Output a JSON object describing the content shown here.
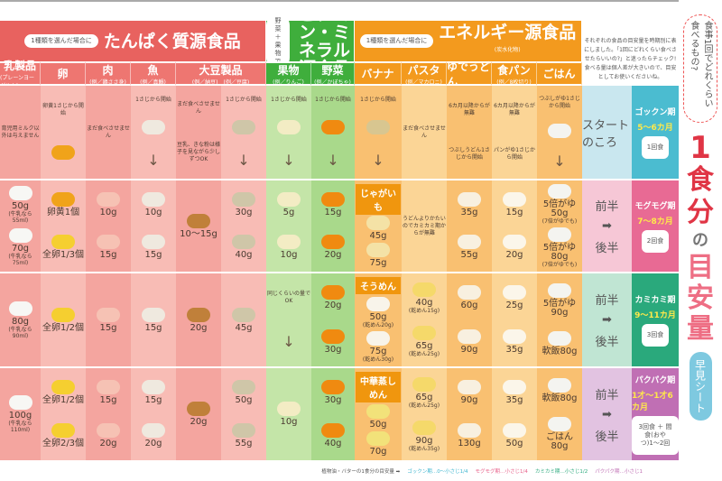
{
  "colors": {
    "protein": "#e8625f",
    "protein_sub": "#ee7671",
    "protein_a": "#f4a59f",
    "protein_b": "#f8bcb5",
    "vitamin": "#3fae3c",
    "vitamin_a": "#a9d98b",
    "vitamin_b": "#c4e5a8",
    "energy": "#f39a1e",
    "energy_a": "#f9c071",
    "energy_b": "#fbd596"
  },
  "categories": [
    {
      "bubble": "1種類を選んだ場合に",
      "title": "たんぱく質源食品",
      "sub": ""
    },
    {
      "bubble": "野菜＋果物で",
      "title": "ビタミン・ミネラル源食品",
      "sub": ""
    },
    {
      "bubble": "1種類を選んだ場合に",
      "title": "エネルギー源食品",
      "sub": "(炭水化物)"
    }
  ],
  "columns": [
    {
      "name": "乳製品",
      "ex": "(プレーンヨーグルト)"
    },
    {
      "name": "卵",
      "ex": ""
    },
    {
      "name": "肉",
      "ex": "(例／鶏ささ身)"
    },
    {
      "name": "魚",
      "ex": "(例／真鯛)"
    },
    {
      "name": "大豆製品",
      "ex": "(例／納豆)　(例／豆腐)"
    },
    {
      "name": "果物",
      "ex": "(例／りんご)"
    },
    {
      "name": "野菜",
      "ex": "(例／かぼちゃ)"
    },
    {
      "name": "バナナ",
      "ex": ""
    },
    {
      "name": "パスタ",
      "ex": "(例／マカロニ)"
    },
    {
      "name": "ゆでうどん",
      "ex": ""
    },
    {
      "name": "食パン",
      "ex": "(例／8枚切り)"
    },
    {
      "name": "ごはん",
      "ex": ""
    }
  ],
  "intro": "それぞれの食品の目安量を時期別に表にしました。「1回にどれくらい食べさせたらいいの?」と迷ったらチェック! 食べる量は個人差が大きいので、目安としてお使いくださいね。",
  "stages": [
    {
      "label": [
        "スタートのころ"
      ],
      "name": "ゴックン期",
      "months": "5〜6カ月",
      "meal": "1回食"
    },
    {
      "label": [
        "前半",
        "➡",
        "後半"
      ],
      "name": "モグモグ期",
      "months": "7〜8カ月",
      "meal": "2回食"
    },
    {
      "label": [
        "前半",
        "➡",
        "後半"
      ],
      "name": "カミカミ期",
      "months": "9〜11カ月",
      "meal": "3回食"
    },
    {
      "label": [
        "前半",
        "➡",
        "後半"
      ],
      "name": "パクパク期",
      "months": "1才〜1才6カ月",
      "meal": "3回食 ＋ 間食(おやつ)1〜2回"
    }
  ],
  "rows": [
    [
      [
        {
          "t": "育児用ミルク以外は与えません"
        }
      ],
      [
        {
          "t": "卵黄1さじから開始"
        },
        {
          "food": "yolk"
        }
      ],
      [
        {
          "t": "まだ食べさせません"
        }
      ],
      [
        {
          "t": "1さじから開始"
        },
        {
          "food": "fish"
        },
        {
          "arrow": "↓"
        }
      ],
      [
        {
          "t": "まだ食べさせません"
        },
        {
          "t": "豆乳、きな粉は様子を見ながら少しずつOK"
        }
      ],
      [
        {
          "t": "1さじから開始"
        },
        {
          "food": "tofu"
        },
        {
          "arrow": "↓"
        }
      ],
      [
        {
          "t": "1さじから開始"
        },
        {
          "food": "apple"
        },
        {
          "arrow": "↓"
        }
      ],
      [
        {
          "t": "1さじから開始"
        },
        {
          "food": "pumpkin"
        },
        {
          "arrow": "↓"
        }
      ],
      [
        {
          "t": "1さじから開始"
        },
        {
          "food": "banana"
        },
        {
          "arrow": "↓"
        }
      ],
      [
        {
          "t": "まだ食べさせません"
        }
      ],
      [
        {
          "t": "6カ月以降からが無難"
        },
        {
          "t": "つぶしうどん1さじから開始"
        }
      ],
      [
        {
          "t": "6カ月以降からが無難"
        },
        {
          "t": "パンがゆ1さじから開始"
        }
      ],
      [
        {
          "t": "つぶしがゆ1さじから開始"
        },
        {
          "food": "rice"
        },
        {
          "arrow": "↓"
        }
      ]
    ],
    [
      [
        {
          "food": "milk",
          "a": "50g",
          "n": "(牛乳なら55ml)"
        },
        {
          "food": "milk",
          "a": "70g",
          "n": "(牛乳なら75ml)"
        }
      ],
      [
        {
          "food": "yolk",
          "a": "卵黄1個"
        },
        {
          "food": "egg",
          "a": "全卵1/3個"
        }
      ],
      [
        {
          "food": "meat",
          "a": "10g"
        },
        {
          "food": "meat",
          "a": "15g"
        }
      ],
      [
        {
          "food": "fish",
          "a": "10g"
        },
        {
          "food": "fish",
          "a": "15g"
        }
      ],
      [
        {
          "food": "natto",
          "a": "10〜15g"
        }
      ],
      [
        {
          "food": "tofu",
          "a": "30g"
        },
        {
          "food": "tofu",
          "a": "40g"
        }
      ],
      [
        {
          "food": "apple",
          "a": "5g"
        },
        {
          "food": "apple",
          "a": "10g"
        }
      ],
      [
        {
          "food": "pumpkin",
          "a": "15g"
        },
        {
          "food": "pumpkin",
          "a": "20g"
        }
      ],
      [
        {
          "tag": "じゃがいも"
        },
        {
          "food": "potato",
          "a": "45g"
        },
        {
          "food": "potato",
          "a": "75g"
        }
      ],
      [
        {
          "t": "うどんよりかたいのでカミカミ期からが無難"
        }
      ],
      [
        {
          "food": "udon",
          "a": "35g"
        },
        {
          "food": "udon",
          "a": "55g"
        }
      ],
      [
        {
          "food": "bread",
          "a": "15g"
        },
        {
          "food": "bread",
          "a": "20g"
        }
      ],
      [
        {
          "food": "rice",
          "a": "5倍がゆ50g",
          "n": "(7倍がゆでも)"
        },
        {
          "food": "rice",
          "a": "5倍がゆ80g",
          "n": "(7倍がゆでも)"
        }
      ]
    ],
    [
      [
        {
          "food": "milk",
          "a": "80g",
          "n": "(牛乳なら90ml)"
        }
      ],
      [
        {
          "food": "egg",
          "a": "全卵1/2個"
        }
      ],
      [
        {
          "food": "meat",
          "a": "15g"
        }
      ],
      [
        {
          "food": "fish",
          "a": "15g"
        }
      ],
      [
        {
          "food": "natto",
          "a": "20g"
        }
      ],
      [
        {
          "food": "tofu",
          "a": "45g"
        }
      ],
      [
        {
          "t": "同じくらいの量でOK"
        },
        {
          "arrow": "↓"
        }
      ],
      [
        {
          "food": "pumpkin",
          "a": "20g"
        },
        {
          "food": "pumpkin",
          "a": "30g"
        }
      ],
      [
        {
          "tag": "そうめん"
        },
        {
          "food": "somen",
          "a": "50g",
          "n": "(乾めん20g)"
        },
        {
          "food": "somen",
          "a": "75g",
          "n": "(乾めん30g)"
        }
      ],
      [
        {
          "food": "pasta",
          "a": "40g",
          "n": "(乾めん15g)"
        },
        {
          "food": "pasta",
          "a": "65g",
          "n": "(乾めん25g)"
        }
      ],
      [
        {
          "food": "udon",
          "a": "60g"
        },
        {
          "food": "udon",
          "a": "90g"
        }
      ],
      [
        {
          "food": "bread",
          "a": "25g"
        },
        {
          "food": "bread",
          "a": "35g"
        }
      ],
      [
        {
          "food": "rice",
          "a": "5倍がゆ90g"
        },
        {
          "food": "rice",
          "a": "軟飯80g"
        }
      ]
    ],
    [
      [
        {
          "food": "milk",
          "a": "100g",
          "n": "(牛乳なら110ml)"
        }
      ],
      [
        {
          "food": "egg",
          "a": "全卵1/2個"
        },
        {
          "food": "egg",
          "a": "全卵2/3個"
        }
      ],
      [
        {
          "food": "meat",
          "a": "15g"
        },
        {
          "food": "meat",
          "a": "20g"
        }
      ],
      [
        {
          "food": "fish",
          "a": "15g"
        },
        {
          "food": "fish",
          "a": "20g"
        }
      ],
      [
        {
          "food": "natto",
          "a": "20g"
        }
      ],
      [
        {
          "food": "tofu",
          "a": "50g"
        },
        {
          "food": "tofu",
          "a": "55g"
        }
      ],
      [
        {
          "food": "apple",
          "a": "10g"
        }
      ],
      [
        {
          "food": "pumpkin",
          "a": "30g"
        },
        {
          "food": "pumpkin",
          "a": "40g"
        }
      ],
      [
        {
          "tag": "中華蒸しめん"
        },
        {
          "food": "noodle",
          "a": "50g"
        },
        {
          "food": "noodle",
          "a": "70g"
        }
      ],
      [
        {
          "food": "pasta",
          "a": "65g",
          "n": "(乾めん25g)"
        },
        {
          "food": "pasta",
          "a": "90g",
          "n": "(乾めん35g)"
        }
      ],
      [
        {
          "food": "udon",
          "a": "90g"
        },
        {
          "food": "udon",
          "a": "130g"
        }
      ],
      [
        {
          "food": "bread",
          "a": "35g"
        },
        {
          "food": "bread",
          "a": "50g"
        }
      ],
      [
        {
          "food": "rice",
          "a": "軟飯80g"
        },
        {
          "food": "rice",
          "a": "ごはん80g"
        }
      ]
    ]
  ],
  "title": {
    "question": "食事1回でどれくらい食べるもの?",
    "one": "1",
    "shoku": "食",
    "bun": "分",
    "no": "の",
    "me": "目",
    "an": "安",
    "ryo": "量",
    "badge": "早見シート"
  },
  "footer": {
    "lead": "植物油・バターの1食分の目安量 ➡",
    "items": [
      {
        "t": "ゴックン期…0〜小さじ1/4",
        "c": "#3fb6d0"
      },
      {
        "t": "モグモグ期…小さじ1/4",
        "c": "#e8608a"
      },
      {
        "t": "カミカミ期…小さじ1/2",
        "c": "#2aa97c"
      },
      {
        "t": "パクパク期…小さじ1",
        "c": "#c06fb4"
      }
    ]
  }
}
